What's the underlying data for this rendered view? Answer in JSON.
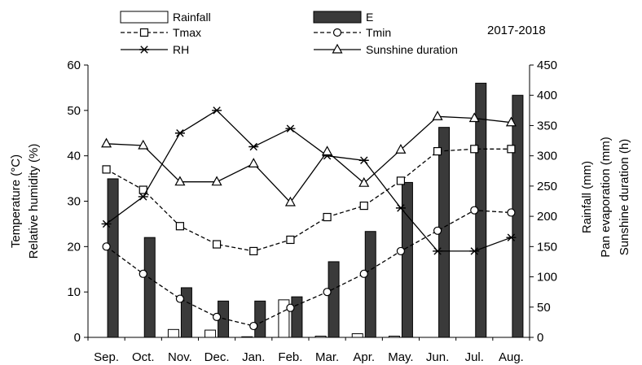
{
  "chart_data": {
    "type": "bar+line",
    "period": "2017-2018",
    "categories": [
      "Sep.",
      "Oct.",
      "Nov.",
      "Dec.",
      "Jan.",
      "Feb.",
      "Mar.",
      "Apr.",
      "May.",
      "Jun.",
      "Jul.",
      "Aug."
    ],
    "left_axis": {
      "label_lines": [
        "Temperature (°C)",
        "Relative humidity (%)"
      ],
      "range": [
        0,
        60
      ],
      "ticks": [
        0,
        10,
        20,
        30,
        40,
        50,
        60
      ]
    },
    "right_axis": {
      "label_lines": [
        "Rainfall (mm)",
        "Pan evaporation (mm)",
        "Sunshine duration (h)"
      ],
      "range": [
        0,
        450
      ],
      "ticks": [
        0,
        50,
        100,
        150,
        200,
        250,
        300,
        350,
        400,
        450
      ]
    },
    "bar_series": [
      {
        "name": "Rainfall",
        "axis": "right",
        "fill": "#ffffff",
        "values": [
          0,
          0,
          13,
          12,
          1,
          62,
          2,
          6,
          2,
          0,
          0,
          0
        ]
      },
      {
        "name": "E",
        "axis": "right",
        "fill": "#3a3a3a",
        "values": [
          262,
          165,
          82,
          60,
          60,
          67,
          125,
          175,
          256,
          347,
          420,
          400
        ]
      }
    ],
    "line_series": [
      {
        "name": "Tmax",
        "axis": "left",
        "dash": "dashed",
        "marker": "square",
        "values": [
          37,
          32.5,
          24.5,
          20.5,
          19,
          21.5,
          26.5,
          29,
          34.5,
          41,
          41.5,
          41.5
        ]
      },
      {
        "name": "Tmin",
        "axis": "left",
        "dash": "dashed",
        "marker": "circle",
        "values": [
          20,
          14,
          8.5,
          4.5,
          2.5,
          6.5,
          10,
          14,
          19,
          23.5,
          28,
          27.5
        ]
      },
      {
        "name": "RH",
        "axis": "left",
        "dash": "solid",
        "marker": "star",
        "values": [
          25,
          31,
          45,
          50,
          42,
          46,
          40,
          39,
          28.5,
          19,
          19,
          22
        ]
      },
      {
        "name": "Sunshine duration",
        "axis": "right",
        "dash": "solid",
        "marker": "triangle",
        "values": [
          320,
          317,
          257,
          257,
          287,
          223,
          307,
          255,
          310,
          365,
          362,
          355
        ]
      }
    ],
    "legend": [
      "Rainfall",
      "E",
      "Tmax",
      "Tmin",
      "RH",
      "Sunshine duration"
    ],
    "legend_position": "top"
  }
}
